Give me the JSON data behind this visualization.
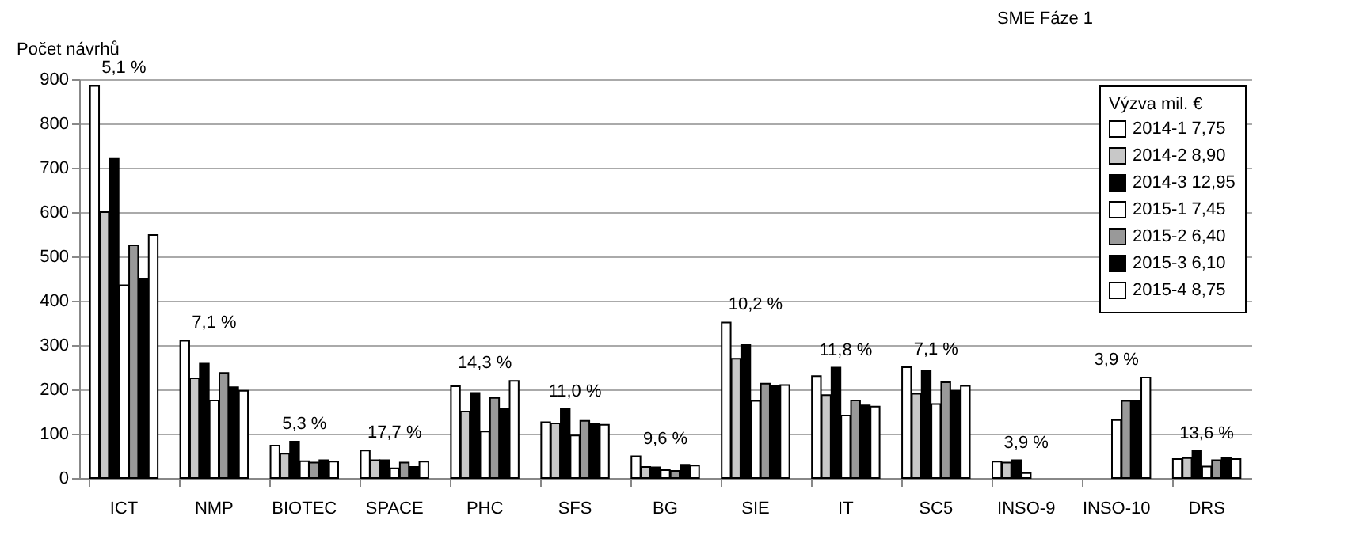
{
  "chart_data": {
    "type": "bar",
    "title": "SME Fáze 1",
    "ylabel": "Počet návrhů",
    "legend_title": "Výzva mil. €",
    "categories": [
      "ICT",
      "NMP",
      "BIOTEC",
      "SPACE",
      "PHC",
      "SFS",
      "BG",
      "SIE",
      "IT",
      "SC5",
      "INSO-9",
      "INSO-10",
      "DRS"
    ],
    "series": [
      {
        "name": "2014-1 7,75",
        "color": "#ffffff",
        "values": [
          885,
          310,
          73,
          62,
          207,
          126,
          49,
          351,
          230,
          250,
          37,
          null,
          43
        ]
      },
      {
        "name": "2014-2 8,90",
        "color": "#c8c8c8",
        "values": [
          600,
          225,
          55,
          40,
          150,
          123,
          25,
          269,
          187,
          190,
          35,
          null,
          45
        ]
      },
      {
        "name": "2014-3 12,95",
        "color": "#000000",
        "values": [
          720,
          258,
          82,
          40,
          192,
          156,
          24,
          300,
          249,
          241,
          40,
          null,
          61
        ]
      },
      {
        "name": "2015-1 7,45",
        "color": "#ffffff",
        "values": [
          435,
          175,
          38,
          22,
          105,
          96,
          18,
          174,
          141,
          167,
          11,
          131,
          26
        ]
      },
      {
        "name": "2015-2 6,40",
        "color": "#999999",
        "values": [
          525,
          237,
          35,
          35,
          181,
          129,
          16,
          213,
          175,
          216,
          null,
          174,
          40
        ]
      },
      {
        "name": "2015-3 6,10",
        "color": "#000000",
        "values": [
          450,
          205,
          40,
          25,
          156,
          123,
          30,
          207,
          164,
          197,
          null,
          174,
          45
        ]
      },
      {
        "name": "2015-4 8,75",
        "color": "#ffffff",
        "values": [
          548,
          197,
          37,
          37,
          219,
          120,
          28,
          210,
          161,
          208,
          null,
          227,
          43
        ]
      }
    ],
    "annotations": [
      "5,1 %",
      "7,1 %",
      "5,3 %",
      "17,7 %",
      "14,3 %",
      "11,0 %",
      "9,6 %",
      "10,2 %",
      "11,8 %",
      "7,1 %",
      "3,9 %",
      "3,9 %",
      "13,6 %"
    ],
    "ylim": [
      0,
      900
    ],
    "yticks": [
      0,
      100,
      200,
      300,
      400,
      500,
      600,
      700,
      800,
      900
    ],
    "grid": "y",
    "legend": "top right"
  }
}
